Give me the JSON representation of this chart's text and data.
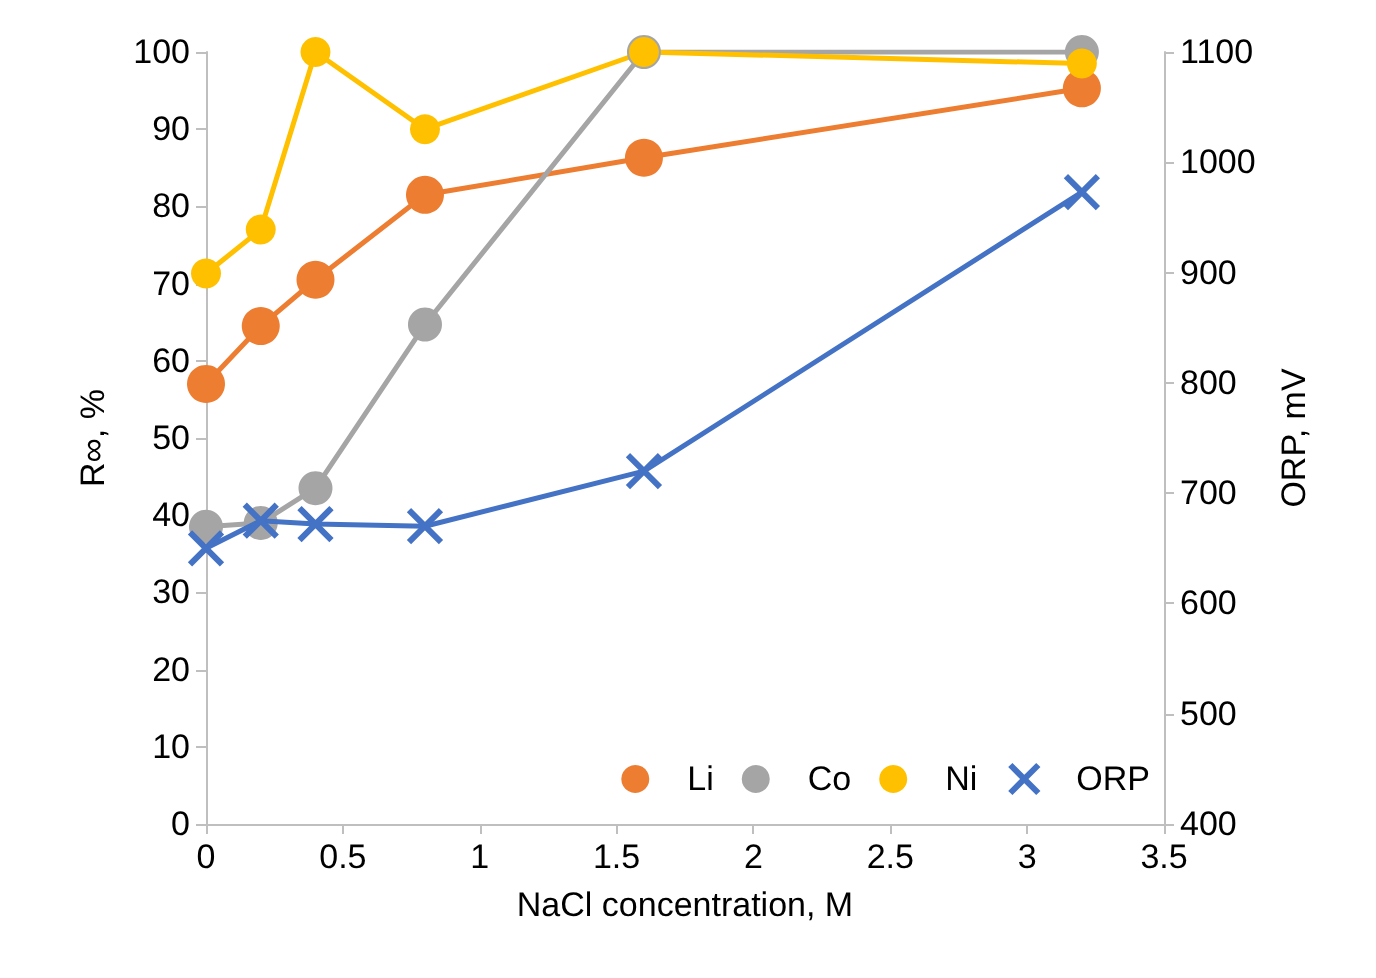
{
  "chart_data": {
    "type": "line",
    "xlabel": "NaCl concentration, M",
    "ylabel": "R∞, %",
    "y2label": "ORP, mV",
    "x": [
      0,
      0.2,
      0.4,
      0.8,
      1.6,
      3.2
    ],
    "series": [
      {
        "name": "Li",
        "color": "#ed7d31",
        "marker": "circle",
        "values": [
          57,
          64.5,
          70.5,
          81.5,
          86.3,
          95.3
        ]
      },
      {
        "name": "Co",
        "color": "#a5a5a5",
        "marker": "circle",
        "values": [
          38.5,
          39,
          43.5,
          64.7,
          100,
          100
        ]
      },
      {
        "name": "Ni",
        "color": "#ffc000",
        "marker": "circle",
        "values": [
          71.3,
          77,
          100,
          90,
          100,
          98.5
        ]
      },
      {
        "name": "ORP",
        "color": "#4472c4",
        "marker": "cross",
        "axis": "y2",
        "values": [
          650,
          675,
          672,
          670,
          720,
          973
        ]
      }
    ],
    "xlim": [
      0,
      3.5
    ],
    "xticks": [
      0,
      0.5,
      1,
      1.5,
      2,
      2.5,
      3,
      3.5
    ],
    "ylim": [
      0,
      100
    ],
    "yticks": [
      0,
      10,
      20,
      30,
      40,
      50,
      60,
      70,
      80,
      90,
      100
    ],
    "y2lim": [
      400,
      1100
    ],
    "y2ticks": [
      400,
      500,
      600,
      700,
      800,
      900,
      1000,
      1100
    ],
    "legend": "bottom right",
    "grid": false
  }
}
